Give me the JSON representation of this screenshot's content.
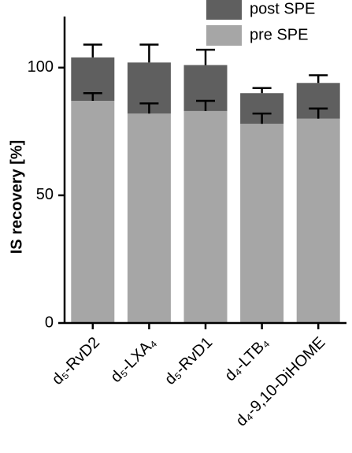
{
  "chart_data": {
    "type": "stacked-bar",
    "y_label": "IS recovery [%]",
    "categories": [
      "d₅-RvD2",
      "d₅-LXA₄",
      "d₅-RvD1",
      "d₄-LTB₄",
      "d₄-9,10-DiHOME"
    ],
    "series": [
      {
        "name": "pre SPE",
        "color": "#a6a6a6",
        "values": [
          87,
          82,
          83,
          78,
          80
        ],
        "errors": [
          3,
          4,
          4,
          4,
          4
        ]
      },
      {
        "name": "post SPE",
        "color": "#5f5f5f",
        "values": [
          17,
          20,
          18,
          12,
          14
        ],
        "errors": [
          5,
          7,
          6,
          2,
          3
        ]
      }
    ],
    "ylim": [
      0,
      120
    ],
    "yticks": [
      0,
      50,
      100
    ],
    "legend": "upper right"
  }
}
